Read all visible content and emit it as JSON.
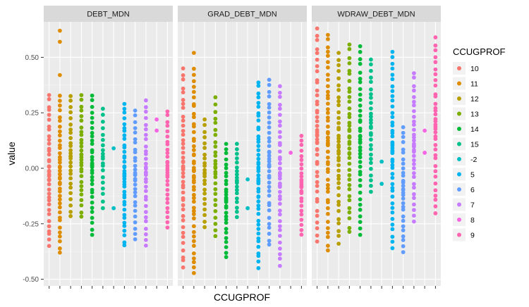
{
  "chart_data": {
    "type": "scatter",
    "xlabel": "CCUGPROF",
    "ylabel": "value",
    "ylim": [
      -0.53,
      0.66
    ],
    "yticks": [
      -0.5,
      -0.25,
      0,
      0.25,
      0.5
    ],
    "ytick_labels": [
      "-0.50",
      "-0.25",
      "0.00",
      "0.25",
      "0.50"
    ],
    "grid": true,
    "legend_position": "right",
    "legend_title": "CCUGPROF",
    "categories": [
      "10",
      "11",
      "12",
      "13",
      "14",
      "15",
      "-2",
      "5",
      "6",
      "7",
      "8",
      "9"
    ],
    "colors": [
      "#F8766D",
      "#DE8C00",
      "#B79F00",
      "#7CAE00",
      "#00BA38",
      "#00C08B",
      "#00BFC4",
      "#00B4F0",
      "#619CFF",
      "#C77CFF",
      "#F564E3",
      "#FF64B0"
    ],
    "panels": [
      {
        "title": "DEBT_MDN",
        "series": [
          {
            "name": "10",
            "min": -0.35,
            "max": 0.33,
            "outliers": [],
            "density": 38
          },
          {
            "name": "11",
            "min": -0.38,
            "max": 0.33,
            "outliers": [
              0.42,
              0.57,
              0.62
            ],
            "density": 40
          },
          {
            "name": "12",
            "min": -0.22,
            "max": 0.33,
            "outliers": [],
            "density": 28
          },
          {
            "name": "13",
            "min": -0.22,
            "max": 0.33,
            "outliers": [],
            "density": 30
          },
          {
            "name": "14",
            "min": -0.3,
            "max": 0.33,
            "outliers": [],
            "density": 34
          },
          {
            "name": "15",
            "min": -0.18,
            "max": 0.27,
            "outliers": [],
            "density": 20
          },
          {
            "name": "-2",
            "min": 0.09,
            "max": 0.09,
            "outliers": [
              -0.18
            ],
            "density": 1
          },
          {
            "name": "5",
            "min": -0.35,
            "max": 0.29,
            "outliers": [],
            "density": 40
          },
          {
            "name": "6",
            "min": -0.32,
            "max": 0.26,
            "outliers": [],
            "density": 30
          },
          {
            "name": "7",
            "min": -0.35,
            "max": 0.31,
            "outliers": [],
            "density": 32
          },
          {
            "name": "8",
            "min": 0.17,
            "max": 0.22,
            "outliers": [],
            "density": 2
          },
          {
            "name": "9",
            "min": -0.27,
            "max": 0.26,
            "outliers": [],
            "density": 30
          }
        ]
      },
      {
        "title": "GRAD_DEBT_MDN",
        "series": [
          {
            "name": "10",
            "min": -0.45,
            "max": 0.45,
            "outliers": [],
            "density": 44
          },
          {
            "name": "11",
            "min": -0.48,
            "max": 0.45,
            "outliers": [
              0.52
            ],
            "density": 48
          },
          {
            "name": "12",
            "min": -0.27,
            "max": 0.22,
            "outliers": [],
            "density": 24
          },
          {
            "name": "13",
            "min": -0.31,
            "max": 0.32,
            "outliers": [],
            "density": 28
          },
          {
            "name": "14",
            "min": -0.4,
            "max": 0.11,
            "outliers": [],
            "density": 30
          },
          {
            "name": "15",
            "min": -0.22,
            "max": 0.11,
            "outliers": [],
            "density": 20
          },
          {
            "name": "-2",
            "min": -0.05,
            "max": -0.05,
            "outliers": [
              -0.18
            ],
            "density": 1
          },
          {
            "name": "5",
            "min": -0.45,
            "max": 0.39,
            "outliers": [],
            "density": 48
          },
          {
            "name": "6",
            "min": -0.35,
            "max": 0.4,
            "outliers": [],
            "density": 38
          },
          {
            "name": "7",
            "min": -0.44,
            "max": 0.37,
            "outliers": [],
            "density": 40
          },
          {
            "name": "8",
            "min": 0.07,
            "max": 0.07,
            "outliers": [],
            "density": 1
          },
          {
            "name": "9",
            "min": -0.3,
            "max": 0.15,
            "outliers": [],
            "density": 26
          }
        ]
      },
      {
        "title": "WDRAW_DEBT_MDN",
        "series": [
          {
            "name": "10",
            "min": -0.33,
            "max": 0.63,
            "outliers": [],
            "density": 44
          },
          {
            "name": "11",
            "min": -0.37,
            "max": 0.61,
            "outliers": [],
            "density": 48
          },
          {
            "name": "12",
            "min": -0.34,
            "max": 0.52,
            "outliers": [],
            "density": 40
          },
          {
            "name": "13",
            "min": -0.29,
            "max": 0.56,
            "outliers": [],
            "density": 40
          },
          {
            "name": "14",
            "min": -0.3,
            "max": 0.55,
            "outliers": [],
            "density": 40
          },
          {
            "name": "15",
            "min": -0.11,
            "max": 0.49,
            "outliers": [],
            "density": 30
          },
          {
            "name": "-2",
            "min": 0.03,
            "max": 0.03,
            "outliers": [
              -0.07
            ],
            "density": 1
          },
          {
            "name": "5",
            "min": -0.36,
            "max": 0.53,
            "outliers": [],
            "density": 44
          },
          {
            "name": "6",
            "min": -0.38,
            "max": 0.19,
            "outliers": [],
            "density": 30
          },
          {
            "name": "7",
            "min": -0.24,
            "max": 0.43,
            "outliers": [],
            "density": 34
          },
          {
            "name": "8",
            "min": 0.07,
            "max": 0.17,
            "outliers": [],
            "density": 2
          },
          {
            "name": "9",
            "min": -0.21,
            "max": 0.59,
            "outliers": [],
            "density": 36
          }
        ]
      }
    ]
  }
}
